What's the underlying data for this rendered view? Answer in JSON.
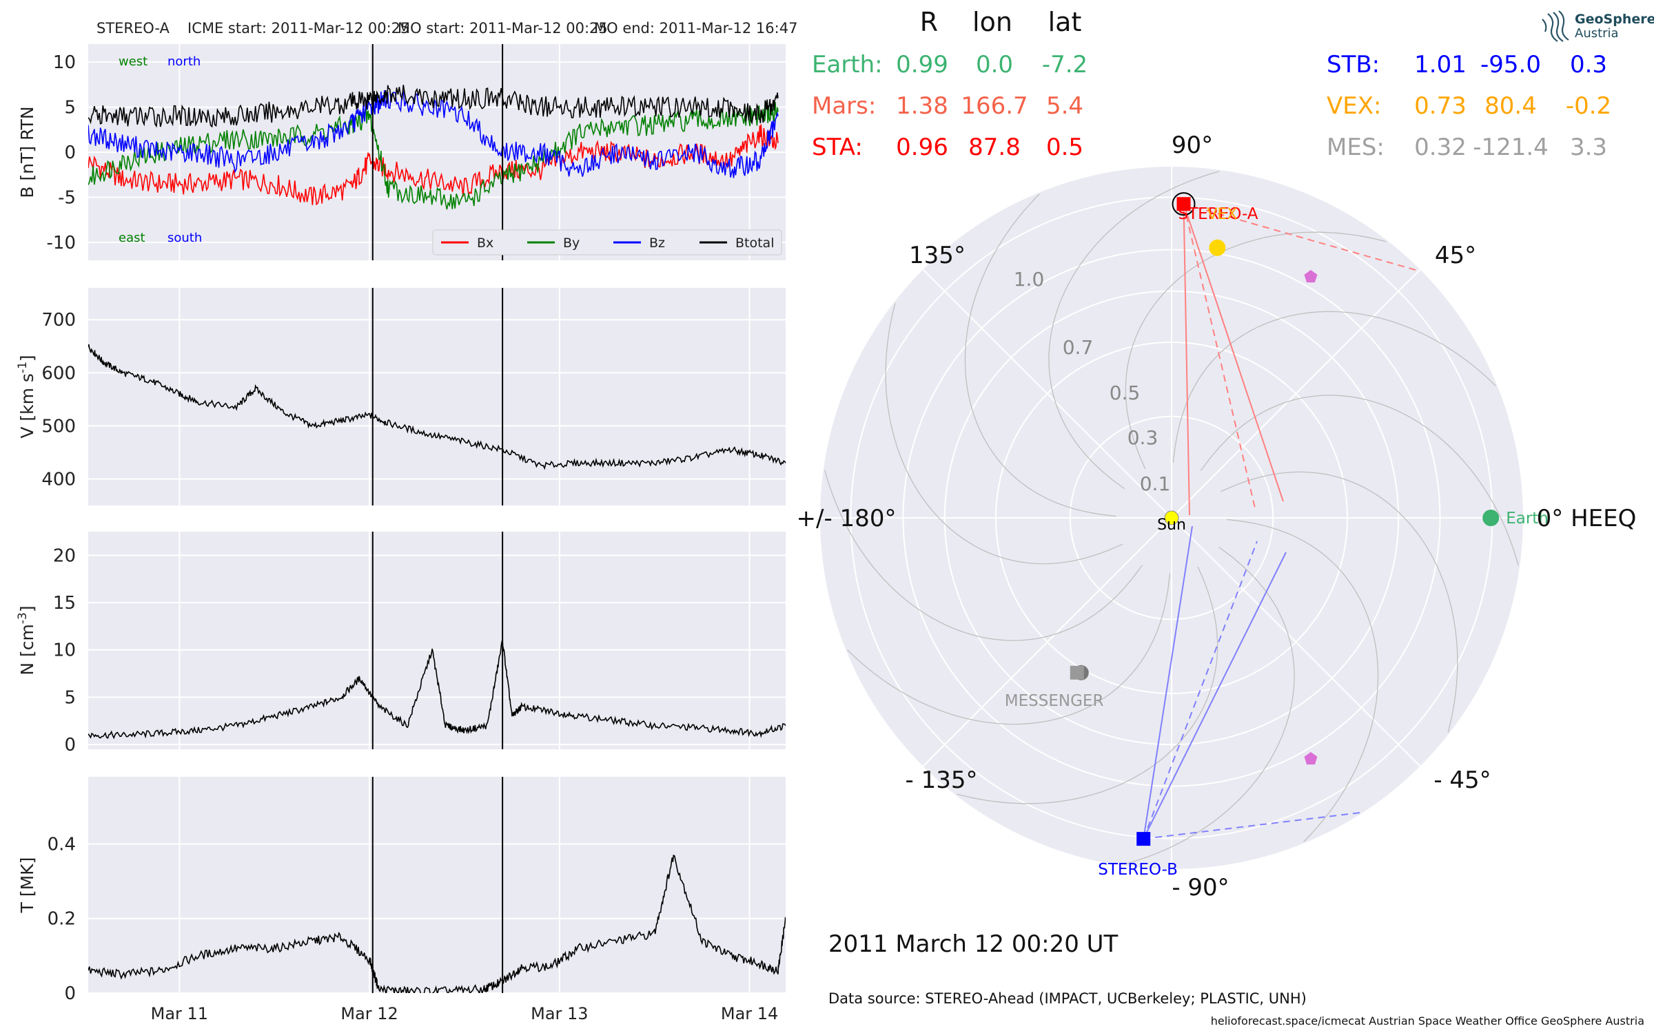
{
  "header": {
    "spacecraft": "STEREO-A",
    "icme_start": "ICME start: 2011-Mar-12 00:25",
    "mo_start": "MO start: 2011-Mar-12 00:25",
    "mo_end": "MO end: 2011-Mar-12 16:47"
  },
  "logo": {
    "line1": "GeoSphere",
    "line2": "Austria"
  },
  "positions_table": {
    "headers": [
      "R",
      "lon",
      "lat"
    ],
    "left": [
      {
        "name": "Earth:",
        "R": "0.99",
        "lon": "0.0",
        "lat": "-7.2",
        "color": "#3cb371"
      },
      {
        "name": "Mars:",
        "R": "1.38",
        "lon": "166.7",
        "lat": "5.4",
        "color": "#f4624a"
      },
      {
        "name": "STA:",
        "R": "0.96",
        "lon": "87.8",
        "lat": "0.5",
        "color": "#ff0000"
      }
    ],
    "right": [
      {
        "name": "STB:",
        "R": "1.01",
        "lon": "-95.0",
        "lat": "0.3",
        "color": "#0000ff"
      },
      {
        "name": "VEX:",
        "R": "0.73",
        "lon": "80.4",
        "lat": "-0.2",
        "color": "#ffa500"
      },
      {
        "name": "MES:",
        "R": "0.32",
        "lon": "-121.4",
        "lat": "3.3",
        "color": "#a0a0a0"
      }
    ]
  },
  "polar": {
    "angle_labels": [
      "90°",
      "45°",
      "0° HEEQ",
      "- 45°",
      "- 90°",
      "- 135°",
      "+/- 180°",
      "135°"
    ],
    "radial_labels": [
      "0.1",
      "0.3",
      "0.5",
      "0.7",
      "1.0"
    ],
    "bodies": [
      {
        "name": "Sun",
        "label": "Sun",
        "r": 0.0,
        "lon": 0,
        "color": "#ffff00"
      },
      {
        "name": "Earth",
        "label": "Earth",
        "r": 0.99,
        "lon": 0.0,
        "color": "#3cb371"
      },
      {
        "name": "STEREO-A",
        "label": "STEREO-A",
        "r": 0.96,
        "lon": 87.8,
        "color": "#ff0000"
      },
      {
        "name": "VEX",
        "label": "VEX",
        "r": 0.73,
        "lon": 80.4,
        "color": "#ffd700"
      },
      {
        "name": "STEREO-B",
        "label": "STEREO-B",
        "r": 1.01,
        "lon": -95.0,
        "color": "#0000ff"
      },
      {
        "name": "MESSENGER",
        "label": "MESSENGER",
        "r": 0.32,
        "lon": -121.4,
        "color": "#999999"
      }
    ],
    "timestamp": "2011 March 12  00:20 UT"
  },
  "footer": {
    "data_source": "Data source: STEREO-Ahead (IMPACT, UCBerkeley; PLASTIC, UNH)",
    "credits": "helioforecast.space/icmecat   Austrian Space Weather Office   GeoSphere Austria"
  },
  "chart_data": [
    {
      "type": "line",
      "ylabel": "B [nT] RTN",
      "ylim": [
        -12,
        12
      ],
      "yticks": [
        10,
        5,
        0,
        -5,
        -10
      ],
      "xlim": [
        10.52,
        14.19
      ],
      "xticks": [
        11,
        12,
        13,
        14
      ],
      "xtick_labels": [
        "Mar 11",
        "Mar 12",
        "Mar 13",
        "Mar 14"
      ],
      "vlines": [
        12.017,
        12.7
      ],
      "annotations": [
        {
          "text": "west",
          "color": "#008000"
        },
        {
          "text": "north",
          "color": "#0000ff"
        },
        {
          "text": "east",
          "color": "#008000"
        },
        {
          "text": "south",
          "color": "#0000ff"
        }
      ],
      "legend": "bottom-right",
      "series": [
        {
          "name": "Bx",
          "color": "#ff0000",
          "x": [
            10.52,
            10.7,
            10.9,
            11.1,
            11.3,
            11.5,
            11.7,
            11.9,
            12.0,
            12.1,
            12.3,
            12.5,
            12.7,
            12.9,
            13.1,
            13.3,
            13.5,
            13.7,
            13.9,
            14.05,
            14.15
          ],
          "y": [
            -1,
            -3,
            -3.5,
            -3.5,
            -3,
            -3.5,
            -5,
            -4,
            -1,
            -2,
            -3,
            -4,
            -2,
            -2,
            0,
            0,
            -1,
            0,
            -1,
            2,
            1
          ]
        },
        {
          "name": "By",
          "color": "#008000",
          "x": [
            10.52,
            10.7,
            10.9,
            11.1,
            11.3,
            11.5,
            11.7,
            11.9,
            12.0,
            12.1,
            12.3,
            12.5,
            12.7,
            12.9,
            13.1,
            13.3,
            13.5,
            13.7,
            13.9,
            14.05,
            14.15
          ],
          "y": [
            -3,
            -1,
            0,
            1,
            1.5,
            1.5,
            2,
            3,
            4,
            -4,
            -5,
            -5.5,
            -3,
            -1,
            2,
            3,
            3,
            3.5,
            3.5,
            4,
            4.5
          ]
        },
        {
          "name": "Bz",
          "color": "#0000ff",
          "x": [
            10.52,
            10.7,
            10.9,
            11.1,
            11.3,
            11.5,
            11.7,
            11.9,
            12.0,
            12.1,
            12.3,
            12.5,
            12.7,
            12.9,
            13.1,
            13.3,
            13.5,
            13.7,
            13.9,
            14.05,
            14.15
          ],
          "y": [
            2,
            1,
            0,
            0,
            -1,
            0,
            1,
            3,
            5,
            6,
            5,
            4,
            0,
            0,
            -2,
            0,
            -1,
            0,
            -2,
            -1,
            4
          ]
        },
        {
          "name": "Btotal",
          "color": "#000000",
          "x": [
            10.52,
            10.7,
            10.9,
            11.1,
            11.3,
            11.5,
            11.7,
            11.9,
            12.0,
            12.1,
            12.3,
            12.5,
            12.7,
            12.9,
            13.1,
            13.3,
            13.5,
            13.7,
            13.9,
            14.05,
            14.15
          ],
          "y": [
            4,
            4,
            4,
            4,
            4,
            4.5,
            5,
            5.5,
            6,
            6.5,
            6,
            6,
            6,
            5,
            5,
            5,
            5,
            5,
            5,
            4,
            6
          ]
        }
      ]
    },
    {
      "type": "line",
      "ylabel": "V [km s^-1]",
      "ylim": [
        350,
        760
      ],
      "yticks": [
        700,
        600,
        500,
        400
      ],
      "xlim": [
        10.52,
        14.19
      ],
      "xticks": [
        11,
        12,
        13,
        14
      ],
      "vlines": [
        12.017,
        12.7
      ],
      "series": [
        {
          "name": "",
          "color": "#000000",
          "x": [
            10.52,
            10.6,
            10.7,
            10.85,
            11.0,
            11.1,
            11.3,
            11.4,
            11.55,
            11.7,
            11.85,
            12.0,
            12.1,
            12.3,
            12.5,
            12.7,
            12.9,
            13.1,
            13.3,
            13.5,
            13.7,
            13.9,
            14.05,
            14.19
          ],
          "y": [
            650,
            620,
            600,
            585,
            560,
            545,
            535,
            570,
            525,
            500,
            510,
            520,
            505,
            485,
            470,
            455,
            425,
            430,
            430,
            430,
            440,
            455,
            445,
            430
          ]
        }
      ]
    },
    {
      "type": "line",
      "ylabel": "N [cm^-3]",
      "ylim": [
        -0.5,
        22.5
      ],
      "yticks": [
        20,
        15,
        10,
        5,
        0
      ],
      "xlim": [
        10.52,
        14.19
      ],
      "xticks": [
        11,
        12,
        13,
        14
      ],
      "vlines": [
        12.017,
        12.7
      ],
      "series": [
        {
          "name": "",
          "color": "#000000",
          "x": [
            10.52,
            10.7,
            10.9,
            11.1,
            11.3,
            11.5,
            11.7,
            11.85,
            11.95,
            12.05,
            12.2,
            12.33,
            12.4,
            12.5,
            12.62,
            12.7,
            12.75,
            12.8,
            12.95,
            13.1,
            13.3,
            13.5,
            13.7,
            13.9,
            14.05,
            14.19
          ],
          "y": [
            1,
            1,
            1.2,
            1.5,
            2,
            3,
            4,
            5,
            7,
            4,
            2,
            10,
            2,
            1.5,
            2,
            11,
            3,
            4,
            3.5,
            3,
            2.5,
            2,
            1.8,
            1.5,
            1.2,
            2
          ]
        }
      ]
    },
    {
      "type": "line",
      "ylabel": "T [MK]",
      "ylim": [
        0,
        0.58
      ],
      "yticks": [
        0.4,
        0.2,
        0.0
      ],
      "xlim": [
        10.52,
        14.19
      ],
      "xticks": [
        11,
        12,
        13,
        14
      ],
      "xtick_labels": [
        "Mar 11",
        "Mar 12",
        "Mar 13",
        "Mar 14"
      ],
      "vlines": [
        12.017,
        12.7
      ],
      "series": [
        {
          "name": "",
          "color": "#000000",
          "x": [
            10.52,
            10.7,
            10.9,
            11.1,
            11.3,
            11.5,
            11.7,
            11.85,
            12.0,
            12.05,
            12.2,
            12.4,
            12.6,
            12.7,
            12.8,
            12.95,
            13.1,
            13.3,
            13.5,
            13.6,
            13.75,
            13.9,
            14.05,
            14.15,
            14.19
          ],
          "y": [
            0.06,
            0.05,
            0.06,
            0.1,
            0.12,
            0.12,
            0.14,
            0.15,
            0.09,
            0.01,
            0.005,
            0.005,
            0.01,
            0.03,
            0.07,
            0.07,
            0.12,
            0.14,
            0.16,
            0.37,
            0.14,
            0.1,
            0.08,
            0.06,
            0.2
          ]
        }
      ]
    }
  ]
}
